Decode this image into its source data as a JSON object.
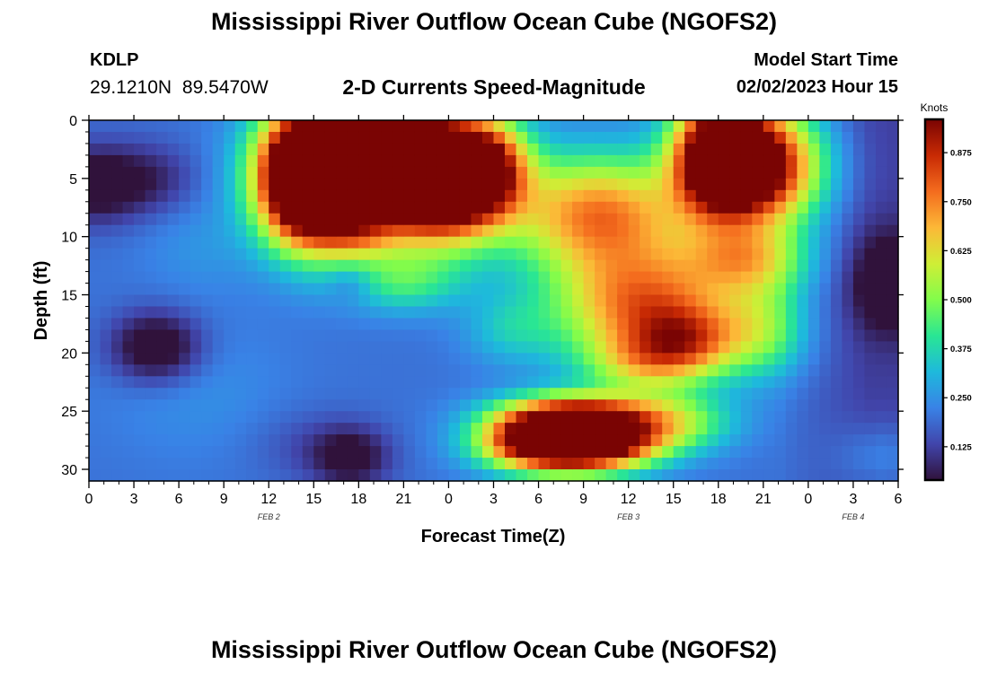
{
  "header": {
    "title": "Mississippi River Outflow Ocean Cube (NGOFS2)",
    "station": "KDLP",
    "coords": "29.1210N 89.5470W",
    "subtitle": "2-D Currents Speed-Magnitude",
    "start_label": "Model Start Time",
    "start_value": "02/02/2023 Hour 15"
  },
  "footer": {
    "title": "Mississippi River Outflow Ocean Cube (NGOFS2)"
  },
  "chart_data": {
    "type": "heatmap",
    "title": "2-D Currents Speed-Magnitude",
    "xlabel": "Forecast Time(Z)",
    "ylabel": "Depth (ft)",
    "xlim": [
      0,
      54
    ],
    "ylim": [
      31,
      0
    ],
    "x_ticks": [
      0,
      3,
      6,
      9,
      12,
      15,
      18,
      21,
      24,
      27,
      30,
      33,
      36,
      39,
      42,
      45,
      48,
      51,
      54
    ],
    "x_tick_labels": [
      "0",
      "3",
      "6",
      "9",
      "12",
      "15",
      "18",
      "21",
      "0",
      "3",
      "6",
      "9",
      "12",
      "15",
      "18",
      "21",
      "0",
      "3",
      "6"
    ],
    "y_ticks": [
      0,
      5,
      10,
      15,
      20,
      25,
      30
    ],
    "y_tick_labels": [
      "0",
      "5",
      "10",
      "15",
      "20",
      "25",
      "30"
    ],
    "date_labels": [
      {
        "label": "FEB 2",
        "x": 12
      },
      {
        "label": "FEB 3",
        "x": 36
      },
      {
        "label": "FEB 4",
        "x": 51
      }
    ],
    "colorbar": {
      "title": "Knots",
      "range": [
        0.04,
        0.96
      ],
      "tick_values": [
        0.125,
        0.25,
        0.375,
        0.5,
        0.625,
        0.75,
        0.875
      ],
      "tick_labels": [
        "0.125",
        "0.250",
        "0.375",
        "0.500",
        "0.625",
        "0.750",
        "0.875"
      ]
    },
    "field_blobs": [
      {
        "x": 0.5,
        "y": 5.5,
        "sx": 3.2,
        "sy": 3.2,
        "a": -0.22
      },
      {
        "x": 4.5,
        "y": 5,
        "sx": 3,
        "sy": 3,
        "a": -0.1
      },
      {
        "x": 4.5,
        "y": 19.5,
        "sx": 3,
        "sy": 3,
        "a": -0.25
      },
      {
        "x": 7,
        "y": 23,
        "sx": 6,
        "sy": 6,
        "a": 0.05
      },
      {
        "x": 7.5,
        "y": 11,
        "sx": 4,
        "sy": 4,
        "a": 0.05
      },
      {
        "x": 15,
        "y": 28,
        "sx": 4,
        "sy": 3,
        "a": -0.06
      },
      {
        "x": 17.5,
        "y": 29,
        "sx": 2.5,
        "sy": 2.5,
        "a": -0.18
      },
      {
        "x": 14.5,
        "y": 5,
        "sx": 3,
        "sy": 5.5,
        "a": 1.0
      },
      {
        "x": 19,
        "y": 4.5,
        "sx": 6,
        "sy": 5.5,
        "a": 1.0
      },
      {
        "x": 19,
        "y": 0.5,
        "sx": 4,
        "sy": 2.5,
        "a": 0.2
      },
      {
        "x": 24,
        "y": 5,
        "sx": 3.5,
        "sy": 5,
        "a": 0.8
      },
      {
        "x": 27,
        "y": 4,
        "sx": 2.5,
        "sy": 4,
        "a": 0.4
      },
      {
        "x": 18,
        "y": 10,
        "sx": 2.5,
        "sy": 2,
        "a": 0.18
      },
      {
        "x": 17.5,
        "y": 14,
        "sx": 1.5,
        "sy": 1.5,
        "a": -0.08
      },
      {
        "x": 21,
        "y": 14,
        "sx": 4,
        "sy": 2.5,
        "a": 0.2
      },
      {
        "x": 28,
        "y": 18,
        "sx": 3,
        "sy": 3,
        "a": 0.12
      },
      {
        "x": 34,
        "y": 8,
        "sx": 6,
        "sy": 5,
        "a": 0.55
      },
      {
        "x": 37,
        "y": 16,
        "sx": 6,
        "sy": 5,
        "a": 0.55
      },
      {
        "x": 42,
        "y": 3,
        "sx": 3,
        "sy": 5,
        "a": 0.85
      },
      {
        "x": 45,
        "y": 4,
        "sx": 4,
        "sy": 5,
        "a": 0.75
      },
      {
        "x": 44,
        "y": 12,
        "sx": 4,
        "sy": 3,
        "a": 0.35
      },
      {
        "x": 40,
        "y": 19,
        "sx": 3.5,
        "sy": 3,
        "a": 0.35
      },
      {
        "x": 37,
        "y": 21,
        "sx": 4,
        "sy": 2.5,
        "a": 0.25
      },
      {
        "x": 45,
        "y": 18,
        "sx": 3,
        "sy": 4,
        "a": 0.25
      },
      {
        "x": 30,
        "y": 27.5,
        "sx": 4,
        "sy": 2.5,
        "a": 0.85
      },
      {
        "x": 34,
        "y": 27.5,
        "sx": 4,
        "sy": 2.5,
        "a": 0.85
      },
      {
        "x": 32.5,
        "y": 25,
        "sx": 5,
        "sy": 1.8,
        "a": 0.35
      },
      {
        "x": 39,
        "y": 26,
        "sx": 4,
        "sy": 2.5,
        "a": 0.3
      },
      {
        "x": 53.5,
        "y": 14,
        "sx": 2.5,
        "sy": 4,
        "a": -0.2
      },
      {
        "x": 53,
        "y": 29,
        "sx": 3,
        "sy": 3,
        "a": 0.1
      }
    ],
    "field_base": 0.2,
    "field_base_right": 0.12
  }
}
